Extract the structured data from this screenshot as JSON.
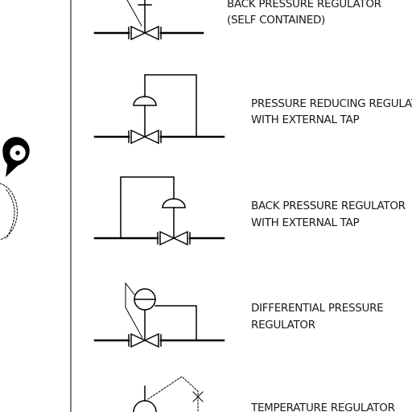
{
  "labels": {
    "item1_line1": "BACK PRESSURE REGULATOR",
    "item1_line2": "(SELF CONTAINED)",
    "item2_line1": "PRESSURE REDUCING REGULATOR",
    "item2_line2": "WITH EXTERNAL TAP",
    "item3_line1": "BACK PRESSURE REGULATOR",
    "item3_line2": "WITH EXTERNAL TAP",
    "item4_line1": "DIFFERENTIAL PRESSURE",
    "item4_line2": "REGULATOR",
    "item5_line1": "TEMPERATURE REGULATOR"
  },
  "icons": [
    "location-marker-icon"
  ]
}
